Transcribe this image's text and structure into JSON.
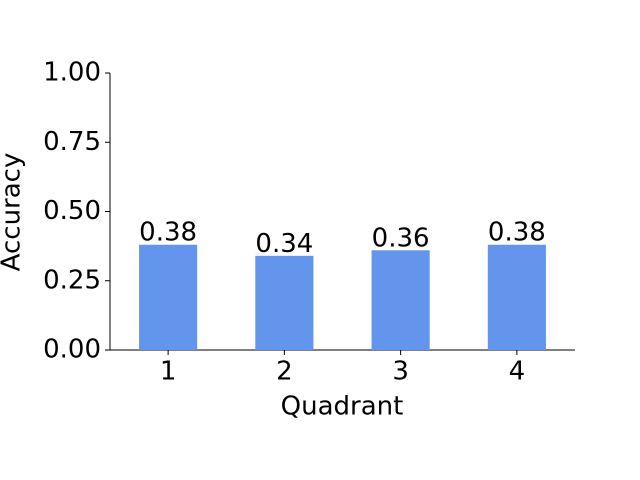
{
  "chart_data": {
    "type": "bar",
    "x_label": "Quadrant",
    "y_label": "Accuracy",
    "categories": [
      "1",
      "2",
      "3",
      "4"
    ],
    "values": [
      0.38,
      0.34,
      0.36,
      0.38
    ],
    "color": "#6495ed",
    "ylim": [
      0,
      1
    ],
    "yticks": [
      {
        "value": 0,
        "label": "0.00"
      },
      {
        "value": 0.25,
        "label": "0.25"
      },
      {
        "value": 0.5,
        "label": "0.50"
      },
      {
        "value": 0.75,
        "label": "0.75"
      },
      {
        "value": 1,
        "label": "1.00"
      }
    ],
    "grid": false,
    "show_value_labels": true
  }
}
